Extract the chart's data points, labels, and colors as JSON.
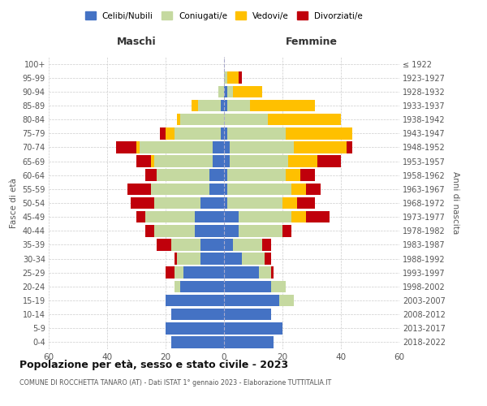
{
  "age_groups": [
    "0-4",
    "5-9",
    "10-14",
    "15-19",
    "20-24",
    "25-29",
    "30-34",
    "35-39",
    "40-44",
    "45-49",
    "50-54",
    "55-59",
    "60-64",
    "65-69",
    "70-74",
    "75-79",
    "80-84",
    "85-89",
    "90-94",
    "95-99",
    "100+"
  ],
  "birth_years": [
    "2018-2022",
    "2013-2017",
    "2008-2012",
    "2003-2007",
    "1998-2002",
    "1993-1997",
    "1988-1992",
    "1983-1987",
    "1978-1982",
    "1973-1977",
    "1968-1972",
    "1963-1967",
    "1958-1962",
    "1953-1957",
    "1948-1952",
    "1943-1947",
    "1938-1942",
    "1933-1937",
    "1928-1932",
    "1923-1927",
    "≤ 1922"
  ],
  "maschi": {
    "celibi": [
      18,
      20,
      18,
      20,
      15,
      14,
      8,
      8,
      10,
      10,
      8,
      5,
      5,
      4,
      4,
      1,
      0,
      1,
      0,
      0,
      0
    ],
    "coniugati": [
      0,
      0,
      0,
      0,
      2,
      3,
      8,
      10,
      14,
      17,
      16,
      20,
      18,
      20,
      25,
      16,
      15,
      8,
      2,
      0,
      0
    ],
    "vedovi": [
      0,
      0,
      0,
      0,
      0,
      0,
      0,
      0,
      0,
      0,
      0,
      0,
      0,
      1,
      1,
      3,
      1,
      2,
      0,
      0,
      0
    ],
    "divorziati": [
      0,
      0,
      0,
      0,
      0,
      3,
      1,
      5,
      3,
      3,
      8,
      8,
      4,
      5,
      7,
      2,
      0,
      0,
      0,
      0,
      0
    ]
  },
  "femmine": {
    "nubili": [
      17,
      20,
      16,
      19,
      16,
      12,
      6,
      3,
      5,
      5,
      1,
      1,
      1,
      2,
      2,
      1,
      0,
      1,
      1,
      0,
      0
    ],
    "coniugate": [
      0,
      0,
      0,
      5,
      5,
      4,
      8,
      10,
      15,
      18,
      19,
      22,
      20,
      20,
      22,
      20,
      15,
      8,
      2,
      1,
      0
    ],
    "vedove": [
      0,
      0,
      0,
      0,
      0,
      0,
      0,
      0,
      0,
      5,
      5,
      5,
      5,
      10,
      18,
      23,
      25,
      22,
      10,
      4,
      0
    ],
    "divorziate": [
      0,
      0,
      0,
      0,
      0,
      1,
      2,
      3,
      3,
      8,
      6,
      5,
      5,
      8,
      2,
      0,
      0,
      0,
      0,
      1,
      0
    ]
  },
  "colors": {
    "celibi": "#4472c4",
    "coniugati": "#c5d9a0",
    "vedovi": "#ffc000",
    "divorziati": "#c0000b"
  },
  "title": "Popolazione per età, sesso e stato civile - 2023",
  "subtitle": "COMUNE DI ROCCHETTA TANARO (AT) - Dati ISTAT 1° gennaio 2023 - Elaborazione TUTTITALIA.IT",
  "xlabel_left": "Maschi",
  "xlabel_right": "Femmine",
  "ylabel_left": "Fasce di età",
  "ylabel_right": "Anni di nascita",
  "xlim": 60,
  "bg_color": "#ffffff",
  "grid_color": "#cccccc"
}
